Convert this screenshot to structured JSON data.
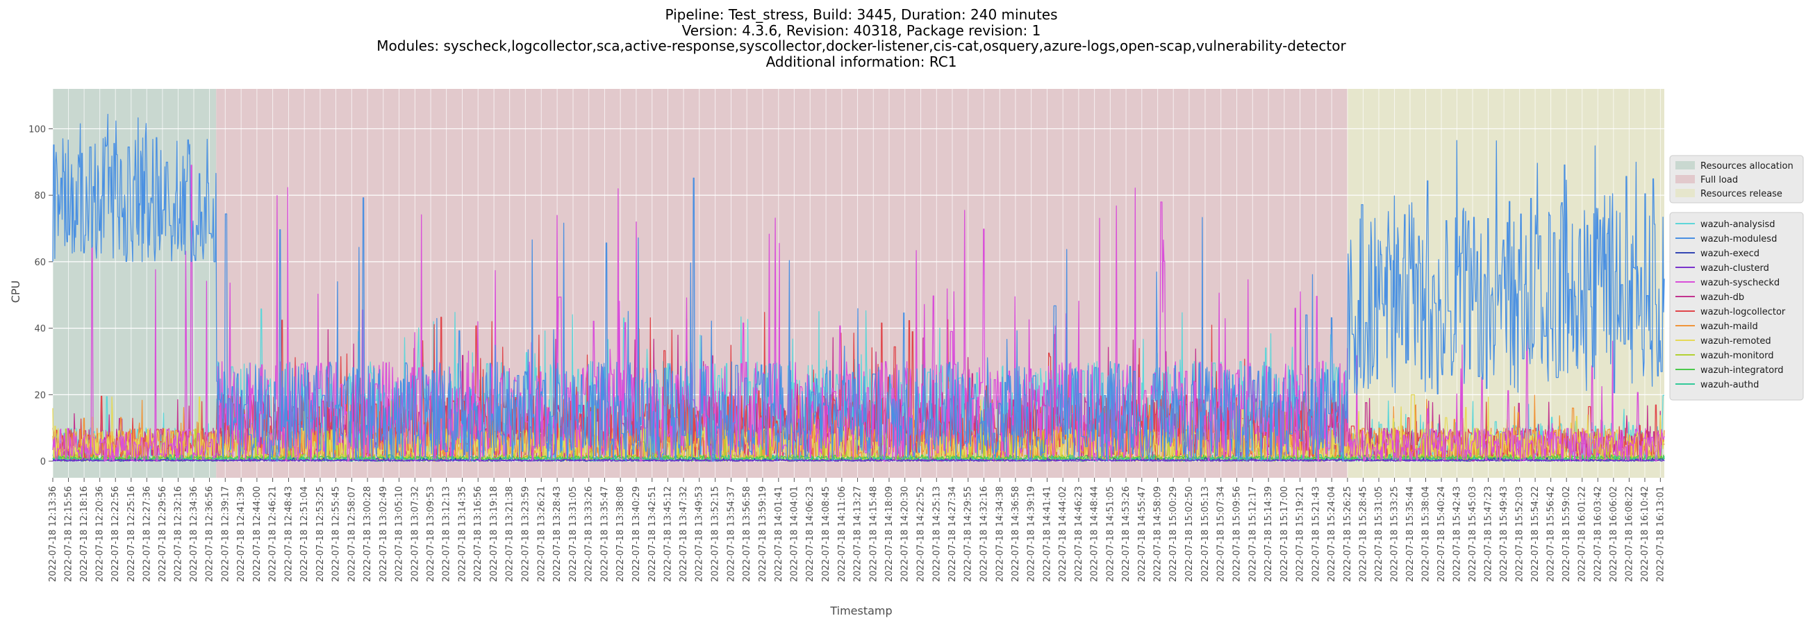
{
  "titles": {
    "line1": "Pipeline: Test_stress, Build: 3445, Duration: 240 minutes",
    "line2": "Version: 4.3.6, Revision: 40318, Package revision: 1",
    "line3": "Modules: syscheck,logcollector,sca,active-response,syscollector,docker-listener,cis-cat,osquery,azure-logs,open-scap,vulnerability-detector",
    "line4": "Additional information: RC1"
  },
  "chart_data": {
    "type": "line",
    "xlabel": "Timestamp",
    "ylabel": "CPU",
    "ylim": [
      -5,
      112
    ],
    "yticks": [
      0,
      20,
      40,
      60,
      80,
      100
    ],
    "grid": true,
    "x_start": "2022-07-18 12:13:36",
    "x_end": "2022-07-18 16:13:36",
    "x_tick_labels": [
      "2022-07-18 12:13:36",
      "2022-07-18 12:15:56",
      "2022-07-18 12:18:16",
      "2022-07-18 12:20:36",
      "2022-07-18 12:22:56",
      "2022-07-18 12:25:16",
      "2022-07-18 12:27:36",
      "2022-07-18 12:29:56",
      "2022-07-18 12:32:16",
      "2022-07-18 12:34:36",
      "2022-07-18 12:36:56",
      "2022-07-18 12:39:17",
      "2022-07-18 12:41:39",
      "2022-07-18 12:44:00",
      "2022-07-18 12:46:21",
      "2022-07-18 12:48:43",
      "2022-07-18 12:51:04",
      "2022-07-18 12:53:25",
      "2022-07-18 12:55:45",
      "2022-07-18 12:58:07",
      "2022-07-18 13:00:28",
      "2022-07-18 13:02:49",
      "2022-07-18 13:05:10",
      "2022-07-18 13:07:32",
      "2022-07-18 13:09:53",
      "2022-07-18 13:12:13",
      "2022-07-18 13:14:35",
      "2022-07-18 13:16:56",
      "2022-07-18 13:19:18",
      "2022-07-18 13:21:38",
      "2022-07-18 13:23:59",
      "2022-07-18 13:26:21",
      "2022-07-18 13:28:43",
      "2022-07-18 13:31:05",
      "2022-07-18 13:33:26",
      "2022-07-18 13:35:47",
      "2022-07-18 13:38:08",
      "2022-07-18 13:40:29",
      "2022-07-18 13:42:51",
      "2022-07-18 13:45:12",
      "2022-07-18 13:47:32",
      "2022-07-18 13:49:53",
      "2022-07-18 13:52:15",
      "2022-07-18 13:54:37",
      "2022-07-18 13:56:58",
      "2022-07-18 13:59:19",
      "2022-07-18 14:01:41",
      "2022-07-18 14:04:01",
      "2022-07-18 14:06:23",
      "2022-07-18 14:08:45",
      "2022-07-18 14:11:06",
      "2022-07-18 14:13:27",
      "2022-07-18 14:15:48",
      "2022-07-18 14:18:09",
      "2022-07-18 14:20:30",
      "2022-07-18 14:22:52",
      "2022-07-18 14:25:13",
      "2022-07-18 14:27:34",
      "2022-07-18 14:29:55",
      "2022-07-18 14:32:16",
      "2022-07-18 14:34:38",
      "2022-07-18 14:36:58",
      "2022-07-18 14:39:19",
      "2022-07-18 14:41:41",
      "2022-07-18 14:44:02",
      "2022-07-18 14:46:23",
      "2022-07-18 14:48:44",
      "2022-07-18 14:51:05",
      "2022-07-18 14:53:26",
      "2022-07-18 14:55:47",
      "2022-07-18 14:58:09",
      "2022-07-18 15:00:29",
      "2022-07-18 15:02:50",
      "2022-07-18 15:05:13",
      "2022-07-18 15:07:34",
      "2022-07-18 15:09:56",
      "2022-07-18 15:12:17",
      "2022-07-18 15:14:39",
      "2022-07-18 15:17:00",
      "2022-07-18 15:19:21",
      "2022-07-18 15:21:43",
      "2022-07-18 15:24:04",
      "2022-07-18 15:26:25",
      "2022-07-18 15:28:45",
      "2022-07-18 15:31:05",
      "2022-07-18 15:33:25",
      "2022-07-18 15:35:44",
      "2022-07-18 15:38:04",
      "2022-07-18 15:40:24",
      "2022-07-18 15:42:43",
      "2022-07-18 15:45:03",
      "2022-07-18 15:47:23",
      "2022-07-18 15:49:43",
      "2022-07-18 15:52:03",
      "2022-07-18 15:54:22",
      "2022-07-18 15:56:42",
      "2022-07-18 15:59:02",
      "2022-07-18 16:01:22",
      "2022-07-18 16:03:42",
      "2022-07-18 16:06:02",
      "2022-07-18 16:08:22",
      "2022-07-18 16:10:42",
      "2022-07-18 16:13:01"
    ],
    "phases": [
      {
        "name": "Resources allocation",
        "start": "2022-07-18 12:13:36",
        "end": "2022-07-18 12:37:56",
        "color": "#c9d8d0"
      },
      {
        "name": "Full load",
        "start": "2022-07-18 12:37:56",
        "end": "2022-07-18 15:26:25",
        "color": "#e2c9cc"
      },
      {
        "name": "Resources release",
        "start": "2022-07-18 15:26:25",
        "end": "2022-07-18 16:13:36",
        "color": "#e6e6cc"
      }
    ],
    "series": [
      {
        "name": "wazuh-analysisd",
        "color": "#5ed6d9",
        "profile": [
          {
            "start": "2022-07-18 12:13:36",
            "end": "2022-07-18 12:37:56",
            "min": 0,
            "max": 10,
            "peak": 20
          },
          {
            "start": "2022-07-18 12:37:56",
            "end": "2022-07-18 15:26:25",
            "min": 0,
            "max": 30,
            "peak": 46
          },
          {
            "start": "2022-07-18 15:26:25",
            "end": "2022-07-18 16:13:36",
            "min": 0,
            "max": 12,
            "peak": 20
          }
        ]
      },
      {
        "name": "wazuh-modulesd",
        "color": "#4a90e2",
        "profile": [
          {
            "start": "2022-07-18 12:13:36",
            "end": "2022-07-18 12:37:56",
            "min": 60,
            "max": 98,
            "peak": 107
          },
          {
            "start": "2022-07-18 12:37:56",
            "end": "2022-07-18 15:26:25",
            "min": 0,
            "max": 30,
            "peak": 87
          },
          {
            "start": "2022-07-18 15:26:25",
            "end": "2022-07-18 16:13:36",
            "min": 20,
            "max": 80,
            "peak": 97
          }
        ]
      },
      {
        "name": "wazuh-execd",
        "color": "#3346b3",
        "profile": [
          {
            "start": "2022-07-18 12:13:36",
            "end": "2022-07-18 16:13:36",
            "min": 0,
            "max": 0.5,
            "peak": 1
          }
        ]
      },
      {
        "name": "wazuh-clusterd",
        "color": "#7a33cc",
        "profile": [
          {
            "start": "2022-07-18 12:13:36",
            "end": "2022-07-18 16:13:36",
            "min": 0,
            "max": 0.5,
            "peak": 1
          }
        ]
      },
      {
        "name": "wazuh-syscheckd",
        "color": "#d94fd9",
        "profile": [
          {
            "start": "2022-07-18 12:13:36",
            "end": "2022-07-18 12:37:56",
            "min": 0,
            "max": 10,
            "peak": 97
          },
          {
            "start": "2022-07-18 12:37:56",
            "end": "2022-07-18 15:26:25",
            "min": 0,
            "max": 30,
            "peak": 85
          },
          {
            "start": "2022-07-18 15:26:25",
            "end": "2022-07-18 16:13:36",
            "min": 0,
            "max": 10,
            "peak": 40
          }
        ]
      },
      {
        "name": "wazuh-db",
        "color": "#c2338f",
        "profile": [
          {
            "start": "2022-07-18 12:13:36",
            "end": "2022-07-18 12:37:56",
            "min": 0,
            "max": 10,
            "peak": 20
          },
          {
            "start": "2022-07-18 12:37:56",
            "end": "2022-07-18 15:26:25",
            "min": 0,
            "max": 20,
            "peak": 40
          },
          {
            "start": "2022-07-18 15:26:25",
            "end": "2022-07-18 16:13:36",
            "min": 0,
            "max": 10,
            "peak": 20
          }
        ]
      },
      {
        "name": "wazuh-logcollector",
        "color": "#e0454a",
        "profile": [
          {
            "start": "2022-07-18 12:13:36",
            "end": "2022-07-18 12:37:56",
            "min": 0,
            "max": 10,
            "peak": 20
          },
          {
            "start": "2022-07-18 12:37:56",
            "end": "2022-07-18 15:26:25",
            "min": 0,
            "max": 20,
            "peak": 45
          },
          {
            "start": "2022-07-18 15:26:25",
            "end": "2022-07-18 16:13:36",
            "min": 0,
            "max": 10,
            "peak": 20
          }
        ]
      },
      {
        "name": "wazuh-maild",
        "color": "#f0953a",
        "profile": [
          {
            "start": "2022-07-18 12:13:36",
            "end": "2022-07-18 16:13:36",
            "min": 0,
            "max": 10,
            "peak": 20
          }
        ]
      },
      {
        "name": "wazuh-remoted",
        "color": "#e6d957",
        "profile": [
          {
            "start": "2022-07-18 12:13:36",
            "end": "2022-07-18 16:13:36",
            "min": 0,
            "max": 10,
            "peak": 20
          }
        ]
      },
      {
        "name": "wazuh-monitord",
        "color": "#b3d133",
        "profile": [
          {
            "start": "2022-07-18 12:13:36",
            "end": "2022-07-18 16:13:36",
            "min": 0,
            "max": 2,
            "peak": 10
          }
        ]
      },
      {
        "name": "wazuh-integratord",
        "color": "#4cc94c",
        "profile": [
          {
            "start": "2022-07-18 12:13:36",
            "end": "2022-07-18 16:13:36",
            "min": 0.5,
            "max": 1.5,
            "peak": 2
          }
        ]
      },
      {
        "name": "wazuh-authd",
        "color": "#33c99a",
        "profile": [
          {
            "start": "2022-07-18 12:13:36",
            "end": "2022-07-18 16:13:36",
            "min": 0,
            "max": 1,
            "peak": 2
          }
        ]
      }
    ]
  }
}
